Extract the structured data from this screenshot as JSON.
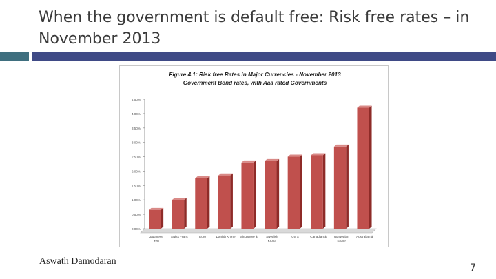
{
  "slide": {
    "title": "When the government is default free: Risk free rates – in November 2013",
    "author": "Aswath Damodaran",
    "page_number": "7"
  },
  "colors": {
    "bar": "#c0504d",
    "bar_side": "#8e2b28",
    "bar_top": "#d98a87",
    "accent_left": "#3f6f7f",
    "accent_right": "#3f4a86"
  },
  "chart_data": {
    "type": "bar",
    "title_line1": "Figure 4.1: Risk free Rates in Major Currencies - November 2013",
    "title_line2": "Government Bond rates, with Aaa rated Governments",
    "categories": [
      [
        "Japanese",
        "Yen"
      ],
      [
        "Swiss Franc"
      ],
      [
        "Euro"
      ],
      [
        "Danish Krone"
      ],
      [
        "Singapore $"
      ],
      [
        "Swedish",
        "Krona"
      ],
      [
        "US $"
      ],
      [
        "Canadian $"
      ],
      [
        "Norwegian",
        "Krone"
      ],
      [
        "Australian $"
      ]
    ],
    "values": [
      0.65,
      1.0,
      1.75,
      1.85,
      2.3,
      2.35,
      2.5,
      2.55,
      2.85,
      4.2
    ],
    "ylim": [
      0,
      4.5
    ],
    "yticks": [
      "0.00%",
      "0.50%",
      "1.00%",
      "1.50%",
      "2.00%",
      "2.50%",
      "3.00%",
      "3.50%",
      "4.00%",
      "4.50%"
    ],
    "xlabel": "",
    "ylabel": "",
    "grid": false,
    "legend": "none"
  }
}
